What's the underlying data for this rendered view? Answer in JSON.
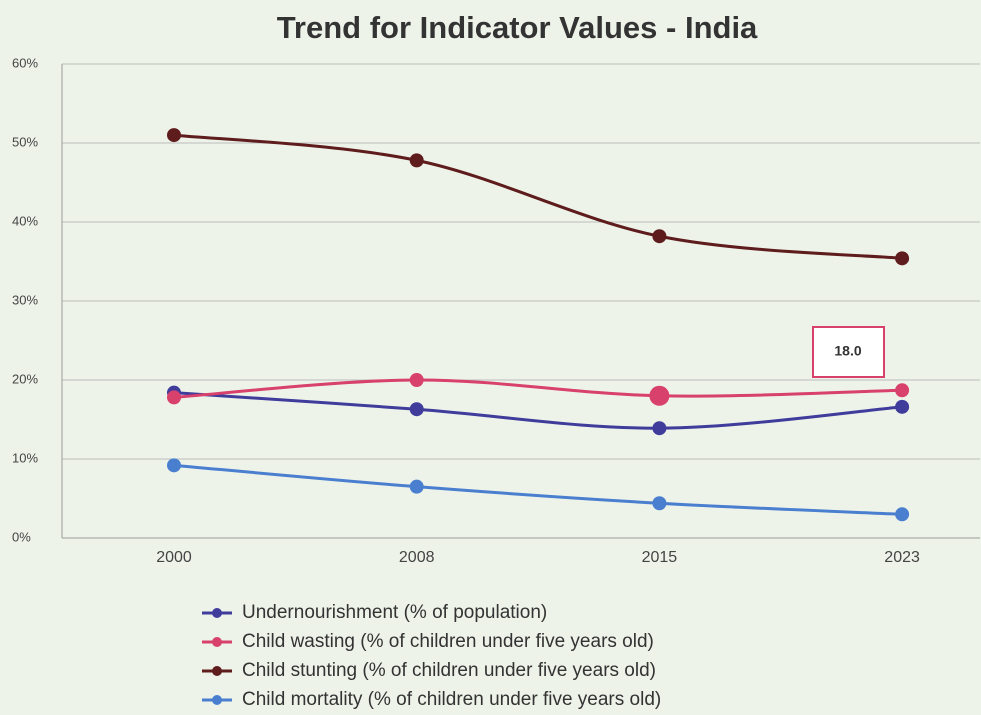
{
  "chart_data": {
    "type": "line",
    "title": "Trend for Indicator Values - India",
    "categories": [
      "2000",
      "2008",
      "2015",
      "2023"
    ],
    "series": [
      {
        "name": "Undernourishment (% of population)",
        "color": "#3f3c9c",
        "values": [
          18.4,
          16.3,
          13.9,
          16.6
        ]
      },
      {
        "name": "Child wasting (% of children under five years old)",
        "color": "#d8416b",
        "values": [
          17.8,
          20.0,
          18.0,
          18.7
        ],
        "value_labels": [
          null,
          null,
          "18.0",
          null
        ]
      },
      {
        "name": "Child stunting (% of children under five years old)",
        "color": "#5e1c1c",
        "values": [
          51.0,
          47.8,
          38.2,
          35.4
        ]
      },
      {
        "name": "Child mortality (% of children under five years old)",
        "color": "#4a7fd0",
        "values": [
          9.2,
          6.5,
          4.4,
          3.0
        ]
      }
    ],
    "ylim": [
      0,
      60
    ],
    "yticks": [
      {
        "value": 0,
        "label": "0%"
      },
      {
        "value": 10,
        "label": "10%"
      },
      {
        "value": 20,
        "label": "20%"
      },
      {
        "value": 30,
        "label": "30%"
      },
      {
        "value": 40,
        "label": "40%"
      },
      {
        "value": 50,
        "label": "50%"
      },
      {
        "value": 60,
        "label": "60%"
      }
    ],
    "grid": true
  }
}
